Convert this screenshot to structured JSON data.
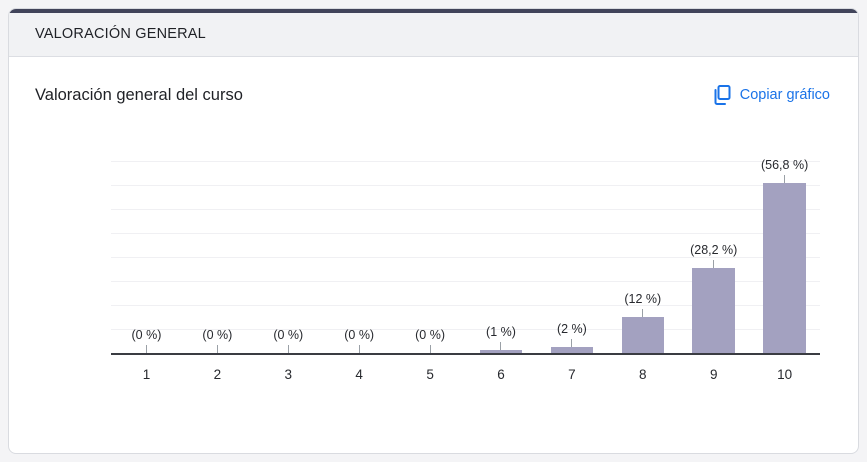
{
  "header": {
    "title": "VALORACIÓN GENERAL"
  },
  "card": {
    "title": "Valoración general del curso",
    "copy_button_label": "Copiar gráfico",
    "copy_icon": "copy-icon"
  },
  "colors": {
    "bar": "#a3a1c0",
    "link": "#1a73e8",
    "header_accent": "#41445a",
    "header_bg": "#f1f2f4",
    "page_bg": "#f4f4f6"
  },
  "chart_data": {
    "type": "bar",
    "categories": [
      "1",
      "2",
      "3",
      "4",
      "5",
      "6",
      "7",
      "8",
      "9",
      "10"
    ],
    "values": [
      0,
      0,
      0,
      0,
      0,
      1,
      2,
      12,
      28.2,
      56.8
    ],
    "value_labels": [
      "(0 %)",
      "(0 %)",
      "(0 %)",
      "(0 %)",
      "(0 %)",
      "(1 %)",
      "(2 %)",
      "(12 %)",
      "(28,2 %)",
      "(56,8 %)"
    ],
    "title": "Valoración general del curso",
    "xlabel": "",
    "ylabel": "",
    "ylim": [
      0,
      60
    ],
    "grid": true,
    "legend": false,
    "bar_color": "#a3a1c0"
  }
}
